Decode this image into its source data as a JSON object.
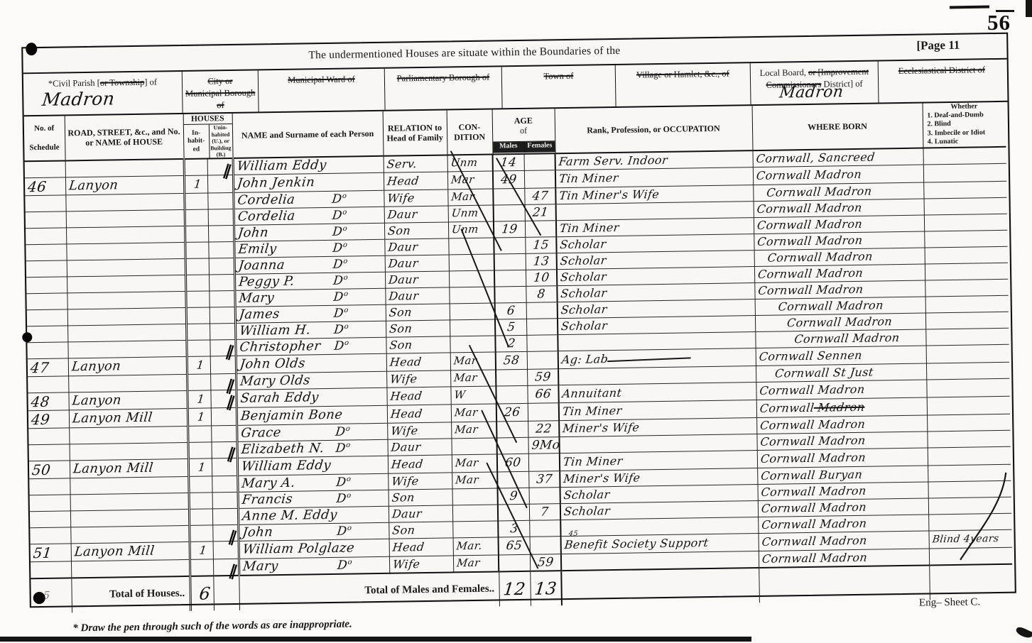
{
  "page": {
    "stamp": "56",
    "page_label": "[Page 11",
    "title": "The undermentioned Houses are situate within the Boundaries of the",
    "footnote": "* Draw the pen through such of the words as are inappropriate.",
    "sheet_label": "Eng– Sheet C."
  },
  "boundaries": [
    {
      "parts": [
        {
          "text": "*Civil Parish ["
        },
        {
          "text": "or Township",
          "struck": true
        },
        {
          "text": "] of"
        }
      ],
      "value": "Madron"
    },
    {
      "parts": [
        {
          "text": "City or",
          "struck": true
        },
        {
          "br": true
        },
        {
          "text": "Municipal Borough of",
          "struck": true
        }
      ]
    },
    {
      "parts": [
        {
          "text": "Municipal Ward of",
          "struck": true
        }
      ]
    },
    {
      "parts": [
        {
          "text": "Parliamentary Borough of",
          "struck": true
        }
      ]
    },
    {
      "parts": [
        {
          "text": "Town of",
          "struck": true
        }
      ]
    },
    {
      "parts": [
        {
          "text": "Village or Hamlet, &c., of",
          "struck": true
        }
      ]
    },
    {
      "parts": [
        {
          "text": "Local Board, "
        },
        {
          "text": "or [Improvement",
          "struck": true
        },
        {
          "br": true
        },
        {
          "text": "Commissioners",
          "struck": true
        },
        {
          "text": " District] of"
        }
      ],
      "value": "Madron"
    },
    {
      "parts": [
        {
          "text": "Ecclesiastical District of",
          "struck": true
        }
      ]
    }
  ],
  "columns": {
    "schedule1": "No. of",
    "schedule2": "Schedule",
    "road": "ROAD, STREET, &c., and No. or NAME of HOUSE",
    "houses": "HOUSES",
    "inhabited": "In-habit-ed",
    "uninhabited": "Unin-habited (U.), or Building (B.)",
    "name": "NAME and Surname of each Person",
    "relation": "RELATION to Head of Family",
    "condition1": "CON-",
    "condition2": "DITION",
    "age1": "AGE",
    "age2": "of",
    "males": "Males",
    "females": "Females",
    "occupation": "Rank, Profession, or OCCUPATION",
    "where_born": "WHERE BORN",
    "disability": {
      "title": "Whether",
      "items": [
        "1. Deaf-and-Dumb",
        "2. Blind",
        "3. Imbecile or Idiot",
        "4. Lunatic"
      ]
    }
  },
  "rows": [
    {
      "mark": true,
      "name": "William Eddy",
      "rel": "Serv.",
      "cond": "Unm",
      "m": "14",
      "occ": "Farm Serv. Indoor",
      "born": "Cornwall, Sancreed"
    },
    {
      "sched": "46",
      "house": "Lanyon",
      "inhab": "1",
      "name": "John Jenkin",
      "rel": "Head",
      "cond": "Mar",
      "m": "49",
      "occ": "Tin Miner",
      "born": "Cornwall Madron"
    },
    {
      "name": "Cordelia",
      "ditto": "Do",
      "rel": "Wife",
      "cond": "Mar",
      "f": "47",
      "occ": "Tin Miner's Wife",
      "born": "Cornwall Madron"
    },
    {
      "name": "Cordelia",
      "ditto": "Do",
      "rel": "Daur",
      "cond": "Unm",
      "f": "21",
      "born": "Cornwall Madron"
    },
    {
      "name": "John",
      "ditto": "Do",
      "rel": "Son",
      "cond": "Unm",
      "m": "19",
      "occ": "Tin Miner",
      "born": "Cornwall Madron"
    },
    {
      "name": "Emily",
      "ditto": "Do",
      "rel": "Daur",
      "f": "15",
      "occ": "Scholar",
      "born": "Cornwall Madron"
    },
    {
      "name": "Joanna",
      "ditto": "Do",
      "rel": "Daur",
      "f": "13",
      "occ": "Scholar",
      "born": "Cornwall Madron"
    },
    {
      "name": "Peggy P.",
      "ditto": "Do",
      "rel": "Daur",
      "f": "10",
      "occ": "Scholar",
      "born": "Cornwall Madron"
    },
    {
      "name": "Mary",
      "ditto": "Do",
      "rel": "Daur",
      "f": "8",
      "occ": "Scholar",
      "born": "Cornwall Madron"
    },
    {
      "name": "James",
      "ditto": "Do",
      "rel": "Son",
      "m": "6",
      "occ": "Scholar",
      "born": "Cornwall Madron"
    },
    {
      "name": "William H.",
      "ditto": "Do",
      "rel": "Son",
      "m": "5",
      "occ": "Scholar",
      "born": "Cornwall Madron"
    },
    {
      "mark": true,
      "name": "Christopher",
      "ditto": "Do",
      "rel": "Son",
      "m": "2",
      "born": "Cornwall Madron"
    },
    {
      "sched": "47",
      "house": "Lanyon",
      "inhab": "1",
      "name": "John Olds",
      "rel": "Head",
      "cond": "Mar",
      "m": "58",
      "occ": "Ag: Lab",
      "born": "Cornwall Sennen"
    },
    {
      "mark": true,
      "name": "Mary Olds",
      "rel": "Wife",
      "cond": "Mar",
      "f": "59",
      "born": "Cornwall St Just"
    },
    {
      "mark": true,
      "sched": "48",
      "house": "Lanyon",
      "inhab": "1",
      "name": "Sarah Eddy",
      "rel": "Head",
      "cond": "W",
      "f": "66",
      "occ": "Annuitant",
      "born": "Cornwall Madron"
    },
    {
      "sched": "49",
      "house": "Lanyon Mill",
      "inhab": "1",
      "name": "Benjamin Bone",
      "rel": "Head",
      "cond": "Mar",
      "m": "26",
      "occ": "Tin Miner",
      "born": "Cornwall",
      "born_struck": "Madron"
    },
    {
      "name": "Grace",
      "ditto": "Do",
      "rel": "Wife",
      "cond": "Mar",
      "f": "22",
      "occ": "Miner's Wife",
      "born": "Cornwall Madron"
    },
    {
      "mark": true,
      "name": "Elizabeth N.",
      "ditto": "Do",
      "rel": "Daur",
      "f": "9Mo",
      "born": "Cornwall Madron"
    },
    {
      "sched": "50",
      "house": "Lanyon Mill",
      "inhab": "1",
      "name": "William Eddy",
      "rel": "Head",
      "cond": "Mar",
      "m": "60",
      "occ": "Tin Miner",
      "born": "Cornwall Madron"
    },
    {
      "name": "Mary A.",
      "ditto": "Do",
      "rel": "Wife",
      "cond": "Mar",
      "f": "37",
      "occ": "Miner's Wife",
      "born": "Cornwall Buryan"
    },
    {
      "name": "Francis",
      "ditto": "Do",
      "rel": "Son",
      "m": "9",
      "occ": "Scholar",
      "born": "Cornwall Madron"
    },
    {
      "name": "Anne M. Eddy",
      "rel": "Daur",
      "f": "7",
      "occ": "Scholar",
      "born": "Cornwall Madron"
    },
    {
      "mark": true,
      "name": "John",
      "ditto": "Do",
      "rel": "Son",
      "m": "3",
      "born": "Cornwall Madron"
    },
    {
      "sched": "51",
      "house": "Lanyon Mill",
      "inhab": "1",
      "name": "William Polglaze",
      "rel": "Head",
      "cond": "Mar.",
      "m": "65",
      "occ": "Benefit Society Support",
      "occ_note": "45",
      "born": "Cornwall Madron",
      "dis": "Blind 4years"
    },
    {
      "mark": true,
      "name": "Mary",
      "ditto": "Do",
      "rel": "Wife",
      "cond": "Mar",
      "f": "59",
      "born": "Cornwall Madron"
    }
  ],
  "totals": {
    "margin_note": "5",
    "houses_label": "Total of Houses..",
    "houses_value": "6",
    "mf_label": "Total of Males and Females..",
    "males_value": "12",
    "females_value": "13"
  }
}
